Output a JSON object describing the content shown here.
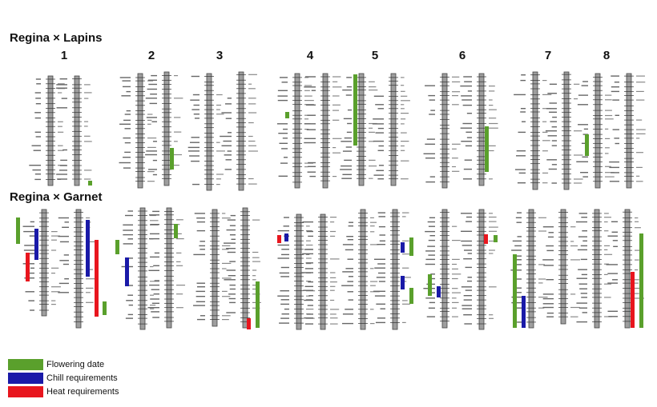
{
  "titles": {
    "top": "Regina × Lapins",
    "bottom": "Regina × Garnet"
  },
  "linkage_groups": [
    "1",
    "2",
    "3",
    "4",
    "5",
    "6",
    "7",
    "8"
  ],
  "legend": [
    {
      "label": "Flowering date",
      "color": "#5aa02c"
    },
    {
      "label": "Chill requirements",
      "color": "#1a1aa8"
    },
    {
      "label": "Heat requirements",
      "color": "#e8161e"
    }
  ],
  "colors": {
    "chromosome_fill": "#9e9e9e",
    "chromosome_stroke": "#444444",
    "marker": "#333333"
  }
}
